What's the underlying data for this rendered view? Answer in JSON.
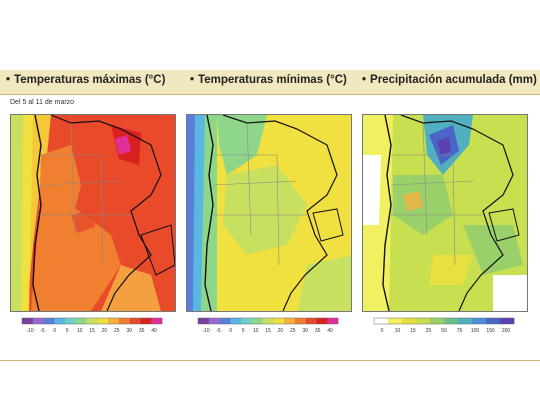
{
  "panels": [
    {
      "title": "Temperaturas máximas (°C)",
      "colors": [
        "#7b3fa0",
        "#9b6ad0",
        "#5a7fd8",
        "#59b7e0",
        "#6fd0c8",
        "#8ed68a",
        "#c8e060",
        "#f0e040",
        "#f5b040",
        "#f08030",
        "#e64a2a",
        "#d92020",
        "#e0309a"
      ],
      "legend_ticks": [
        "-10",
        "-5",
        "0",
        "5",
        "10",
        "15",
        "20",
        "25",
        "30",
        "35",
        "40"
      ]
    },
    {
      "title": "Temperaturas mínimas (°C)",
      "colors": [
        "#7b3fa0",
        "#9b6ad0",
        "#5a7fd8",
        "#59b7e0",
        "#6fd0c8",
        "#8ed68a",
        "#c8e060",
        "#f0e040",
        "#f5b040",
        "#f08030",
        "#e64a2a",
        "#d92020",
        "#e0309a"
      ],
      "legend_ticks": [
        "-10",
        "-5",
        "0",
        "5",
        "10",
        "15",
        "20",
        "25",
        "30",
        "35",
        "40"
      ]
    },
    {
      "title": "Precipitación acumulada (mm)",
      "colors": [
        "#ffffff",
        "#f0f060",
        "#e6e040",
        "#c8e050",
        "#9ad06a",
        "#6cc08a",
        "#50b0c0",
        "#4a90d8",
        "#4a64c8",
        "#5a40b0"
      ],
      "legend_ticks": [
        "0",
        "10",
        "15",
        "25",
        "50",
        "75",
        "100",
        "150",
        "200"
      ]
    }
  ],
  "date_range": "Del 5 al 11 de marzo"
}
